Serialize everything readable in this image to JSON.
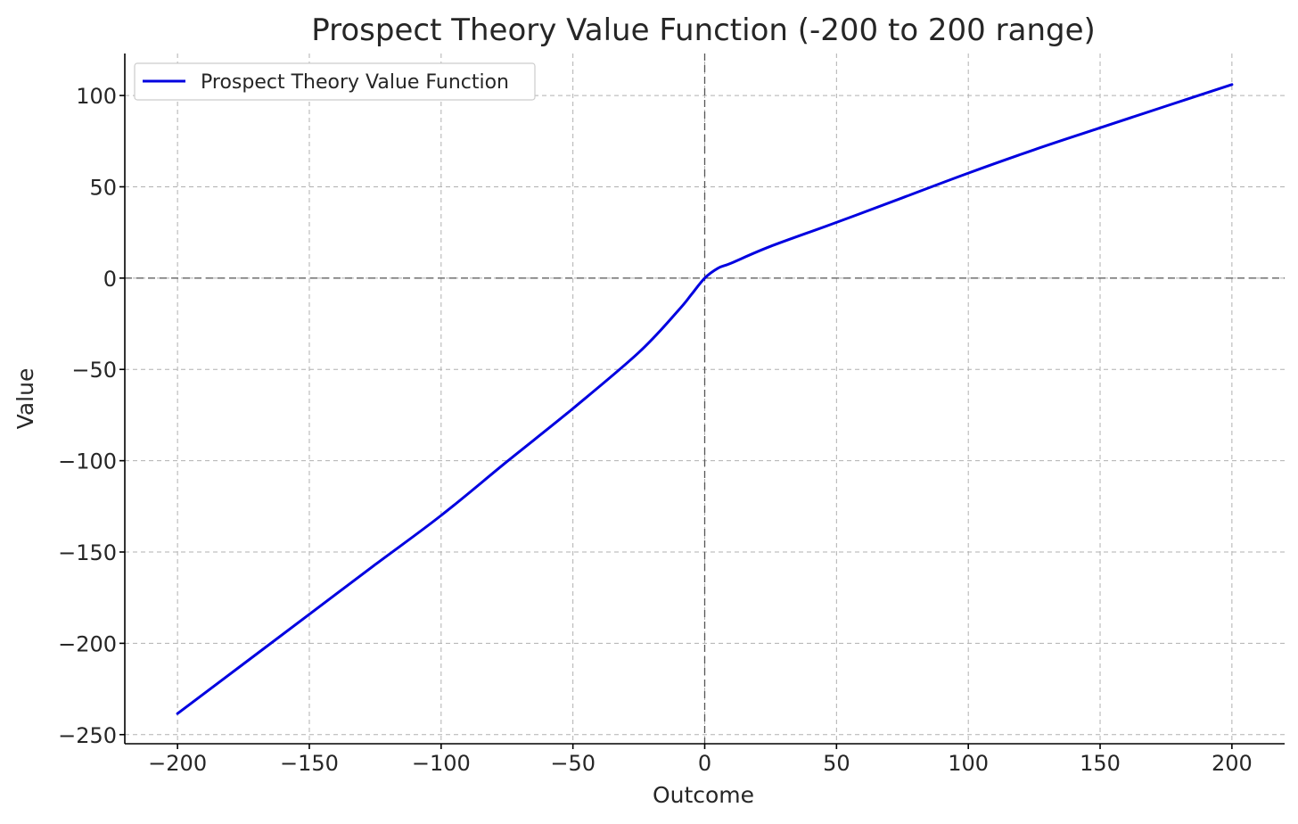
{
  "chart_data": {
    "type": "line",
    "title": "Prospect Theory Value Function (-200 to 200 range)",
    "xlabel": "Outcome",
    "ylabel": "Value",
    "xlim": [
      -220,
      220
    ],
    "ylim": [
      -255,
      123
    ],
    "xticks": [
      -200,
      -150,
      -100,
      -50,
      0,
      50,
      100,
      150,
      200
    ],
    "xtick_labels": [
      "−200",
      "−150",
      "−100",
      "−50",
      "0",
      "50",
      "100",
      "150",
      "200"
    ],
    "yticks": [
      -250,
      -200,
      -150,
      -100,
      -50,
      0,
      50,
      100
    ],
    "ytick_labels": [
      "−250",
      "−200",
      "−150",
      "−100",
      "−50",
      "0",
      "50",
      "100"
    ],
    "grid": true,
    "legend_position": "top-left",
    "reference_lines": {
      "x": 0,
      "y": 0
    },
    "series": [
      {
        "name": "Prospect Theory Value Function",
        "color": "#0000e0",
        "x": [
          -200,
          -175,
          -150,
          -125,
          -100,
          -75,
          -50,
          -25,
          -10,
          -5,
          0,
          5,
          10,
          25,
          50,
          75,
          100,
          125,
          150,
          175,
          200
        ],
        "y": [
          -238.5,
          -211.3,
          -184.1,
          -156.9,
          -130,
          -100.5,
          -71.4,
          -40.7,
          -17.7,
          -8.9,
          0,
          5.4,
          8.2,
          17.4,
          30.5,
          44,
          57.5,
          70.3,
          82.3,
          94.2,
          106
        ]
      }
    ]
  }
}
